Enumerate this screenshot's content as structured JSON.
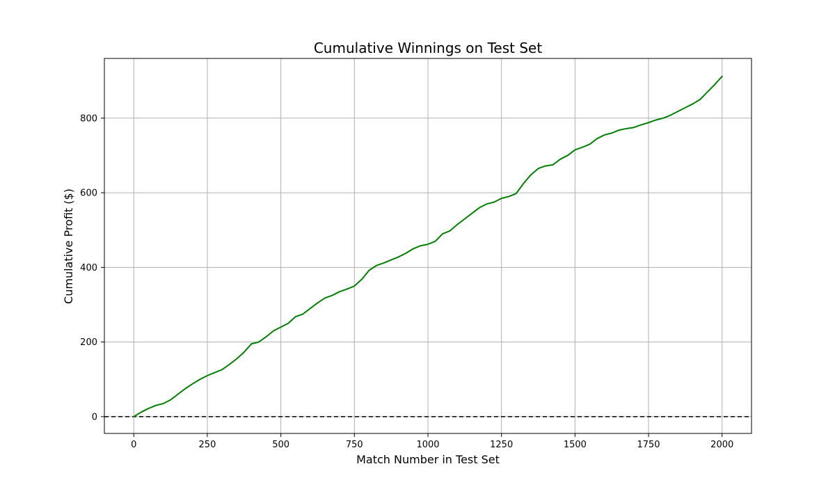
{
  "chart_data": {
    "type": "line",
    "title": "Cumulative Winnings on Test Set",
    "xlabel": "Match Number in Test Set",
    "ylabel": "Cumulative Profit ($)",
    "xlim": [
      -100,
      2100
    ],
    "ylim": [
      -45,
      960
    ],
    "xticks": [
      0,
      250,
      500,
      750,
      1000,
      1250,
      1500,
      1750,
      2000
    ],
    "yticks": [
      0,
      200,
      400,
      600,
      800
    ],
    "grid": true,
    "line_color": "#008000",
    "grid_color": "#b0b0b0",
    "reference_line": {
      "y": 0,
      "style": "dashed",
      "color": "#000000"
    },
    "series": [
      {
        "x": [
          0,
          25,
          50,
          75,
          100,
          125,
          150,
          175,
          200,
          225,
          250,
          275,
          300,
          325,
          350,
          375,
          400,
          425,
          450,
          475,
          500,
          525,
          550,
          575,
          600,
          625,
          650,
          675,
          700,
          725,
          750,
          775,
          800,
          825,
          850,
          875,
          900,
          925,
          950,
          975,
          1000,
          1025,
          1050,
          1075,
          1100,
          1125,
          1150,
          1175,
          1200,
          1225,
          1250,
          1275,
          1300,
          1325,
          1350,
          1375,
          1400,
          1425,
          1450,
          1475,
          1500,
          1525,
          1550,
          1575,
          1600,
          1625,
          1650,
          1675,
          1700,
          1725,
          1750,
          1775,
          1800,
          1825,
          1850,
          1875,
          1900,
          1925,
          1950,
          1975,
          2000
        ],
        "values": [
          0,
          12,
          22,
          30,
          35,
          45,
          60,
          75,
          88,
          100,
          110,
          118,
          126,
          140,
          155,
          173,
          195,
          200,
          214,
          230,
          240,
          250,
          268,
          275,
          290,
          305,
          318,
          325,
          335,
          342,
          350,
          368,
          392,
          405,
          412,
          420,
          428,
          438,
          450,
          458,
          462,
          470,
          490,
          498,
          515,
          530,
          545,
          560,
          570,
          575,
          585,
          590,
          598,
          625,
          648,
          665,
          672,
          675,
          690,
          700,
          715,
          722,
          730,
          745,
          755,
          760,
          768,
          772,
          775,
          782,
          788,
          795,
          800,
          808,
          818,
          828,
          838,
          850,
          870,
          890,
          912
        ]
      }
    ]
  }
}
